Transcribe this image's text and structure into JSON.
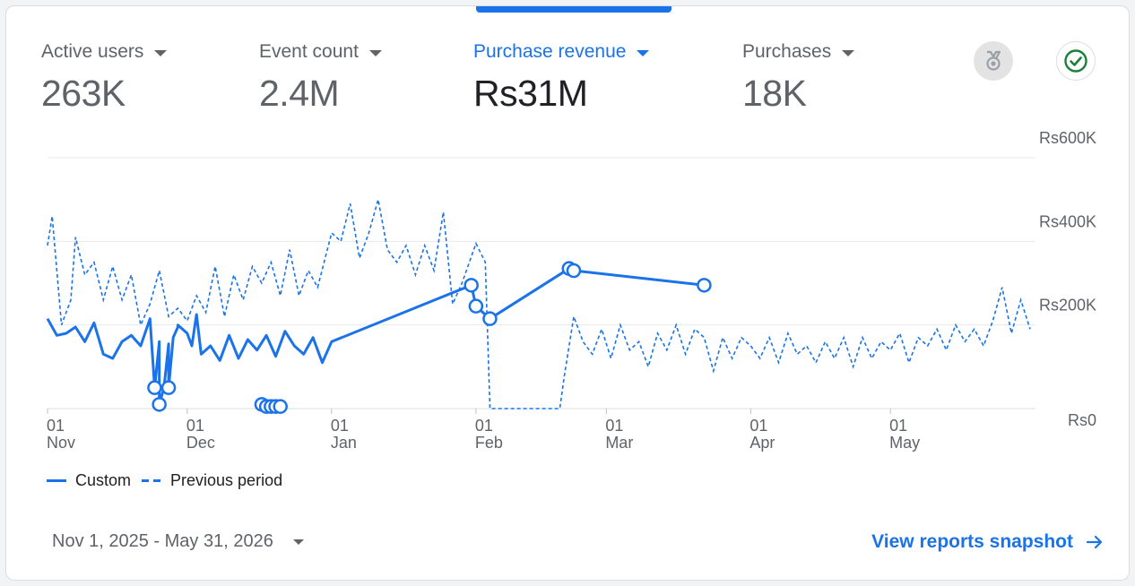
{
  "metrics": [
    {
      "label": "Active users",
      "value": "263K"
    },
    {
      "label": "Event count",
      "value": "2.4M"
    },
    {
      "label": "Purchase revenue",
      "value": "Rs31M"
    },
    {
      "label": "Purchases",
      "value": "18K"
    }
  ],
  "selected_metric": "Purchase revenue",
  "icons": {
    "insights": "medal-icon",
    "status": "check-circle-icon"
  },
  "colors": {
    "accent": "#1a73e8",
    "status_green": "#188038",
    "muted_text": "#5f6368"
  },
  "chart_data": {
    "type": "line",
    "title": "",
    "xlabel": "",
    "ylabel": "",
    "ylim": [
      0,
      600000
    ],
    "y_ticks": [
      "Rs0",
      "Rs200K",
      "Rs400K",
      "Rs600K"
    ],
    "y_tick_values": [
      0,
      200000,
      400000,
      600000
    ],
    "x_range": [
      "2025-11-01",
      "2026-05-31"
    ],
    "x_ticks": [
      {
        "day": "01",
        "month": "Nov",
        "date": "2025-11-01"
      },
      {
        "day": "01",
        "month": "Dec",
        "date": "2025-12-01"
      },
      {
        "day": "01",
        "month": "Jan",
        "date": "2026-01-01"
      },
      {
        "day": "01",
        "month": "Feb",
        "date": "2026-02-01"
      },
      {
        "day": "01",
        "month": "Mar",
        "date": "2026-03-01"
      },
      {
        "day": "01",
        "month": "Apr",
        "date": "2026-04-01"
      },
      {
        "day": "01",
        "month": "May",
        "date": "2026-05-01"
      }
    ],
    "grid": true,
    "legend_position": "bottom-left",
    "series": [
      {
        "name": "Custom",
        "style": "solid",
        "color": "#1a73e8",
        "points": [
          [
            "2025-11-01",
            215000
          ],
          [
            "2025-11-03",
            175000
          ],
          [
            "2025-11-05",
            180000
          ],
          [
            "2025-11-07",
            195000
          ],
          [
            "2025-11-09",
            160000
          ],
          [
            "2025-11-11",
            205000
          ],
          [
            "2025-11-13",
            130000
          ],
          [
            "2025-11-15",
            120000
          ],
          [
            "2025-11-17",
            160000
          ],
          [
            "2025-11-19",
            175000
          ],
          [
            "2025-11-21",
            150000
          ],
          [
            "2025-11-23",
            215000
          ],
          [
            "2025-11-25",
            160000
          ],
          [
            "2025-11-27",
            155000
          ],
          [
            "2025-11-29",
            195000
          ],
          [
            "2025-12-01",
            180000
          ],
          [
            "2025-12-03",
            225000
          ],
          [
            "2025-11-29",
            200000
          ],
          [
            "2025-11-24",
            50000
          ],
          [
            "2025-11-24",
            50000
          ],
          [
            "2025-11-25",
            10000
          ],
          [
            "2025-11-26",
            50000
          ],
          [
            "2025-11-27",
            50000
          ],
          [
            "2025-11-28",
            170000
          ],
          [
            "2025-12-02",
            150000
          ],
          [
            "2025-12-04",
            130000
          ],
          [
            "2025-12-06",
            150000
          ],
          [
            "2025-12-08",
            115000
          ],
          [
            "2025-12-10",
            175000
          ],
          [
            "2025-12-12",
            120000
          ],
          [
            "2025-12-14",
            165000
          ],
          [
            "2025-12-16",
            140000
          ],
          [
            "2025-12-18",
            175000
          ],
          [
            "2025-12-20",
            125000
          ],
          [
            "2025-12-22",
            185000
          ],
          [
            "2025-12-24",
            150000
          ],
          [
            "2025-12-26",
            130000
          ],
          [
            "2025-12-28",
            170000
          ],
          [
            "2025-12-30",
            110000
          ],
          [
            "2026-01-01",
            160000
          ]
        ],
        "highlighted_points": [
          [
            "2025-11-24",
            50000
          ],
          [
            "2025-11-25",
            10000
          ],
          [
            "2025-11-27",
            50000
          ],
          [
            "2025-12-17",
            10000
          ],
          [
            "2025-12-18",
            5000
          ],
          [
            "2025-12-19",
            5000
          ],
          [
            "2025-12-20",
            5000
          ],
          [
            "2025-12-21",
            5000
          ],
          [
            "2026-01-31",
            295000
          ],
          [
            "2026-02-01",
            245000
          ],
          [
            "2026-02-04",
            215000
          ],
          [
            "2026-02-21",
            335000
          ],
          [
            "2026-02-22",
            330000
          ],
          [
            "2026-03-22",
            295000
          ]
        ]
      },
      {
        "name": "Previous period",
        "style": "dashed",
        "color": "#1a73e8",
        "points": [
          [
            "2025-11-01",
            390000
          ],
          [
            "2025-11-02",
            460000
          ],
          [
            "2025-11-04",
            200000
          ],
          [
            "2025-11-06",
            260000
          ],
          [
            "2025-11-07",
            410000
          ],
          [
            "2025-11-09",
            320000
          ],
          [
            "2025-11-11",
            350000
          ],
          [
            "2025-11-13",
            260000
          ],
          [
            "2025-11-15",
            340000
          ],
          [
            "2025-11-17",
            260000
          ],
          [
            "2025-11-19",
            320000
          ],
          [
            "2025-11-21",
            200000
          ],
          [
            "2025-11-23",
            250000
          ],
          [
            "2025-11-25",
            330000
          ],
          [
            "2025-11-27",
            220000
          ],
          [
            "2025-11-29",
            240000
          ],
          [
            "2025-12-01",
            210000
          ],
          [
            "2025-12-03",
            270000
          ],
          [
            "2025-12-05",
            230000
          ],
          [
            "2025-12-07",
            340000
          ],
          [
            "2025-12-09",
            220000
          ],
          [
            "2025-12-11",
            320000
          ],
          [
            "2025-12-13",
            260000
          ],
          [
            "2025-12-15",
            340000
          ],
          [
            "2025-12-17",
            300000
          ],
          [
            "2025-12-19",
            350000
          ],
          [
            "2025-12-21",
            270000
          ],
          [
            "2025-12-23",
            380000
          ],
          [
            "2025-12-25",
            270000
          ],
          [
            "2025-12-27",
            330000
          ],
          [
            "2025-12-29",
            290000
          ],
          [
            "2026-01-01",
            420000
          ],
          [
            "2026-01-03",
            400000
          ],
          [
            "2026-01-05",
            490000
          ],
          [
            "2026-01-07",
            360000
          ],
          [
            "2026-01-09",
            420000
          ],
          [
            "2026-01-11",
            500000
          ],
          [
            "2026-01-13",
            380000
          ],
          [
            "2026-01-15",
            350000
          ],
          [
            "2026-01-17",
            390000
          ],
          [
            "2026-01-19",
            320000
          ],
          [
            "2026-01-21",
            390000
          ],
          [
            "2026-01-23",
            330000
          ],
          [
            "2026-01-25",
            470000
          ],
          [
            "2026-01-27",
            250000
          ],
          [
            "2026-01-29",
            300000
          ],
          [
            "2026-02-01",
            395000
          ],
          [
            "2026-02-03",
            350000
          ],
          [
            "2026-02-04",
            0
          ],
          [
            "2026-02-07",
            0
          ],
          [
            "2026-02-11",
            0
          ],
          [
            "2026-02-15",
            0
          ],
          [
            "2026-02-19",
            0
          ],
          [
            "2026-02-20",
            80000
          ],
          [
            "2026-02-22",
            220000
          ],
          [
            "2026-02-24",
            160000
          ],
          [
            "2026-02-26",
            130000
          ],
          [
            "2026-02-28",
            190000
          ],
          [
            "2026-03-02",
            120000
          ],
          [
            "2026-03-04",
            200000
          ],
          [
            "2026-03-06",
            140000
          ],
          [
            "2026-03-08",
            160000
          ],
          [
            "2026-03-10",
            100000
          ],
          [
            "2026-03-12",
            180000
          ],
          [
            "2026-03-14",
            140000
          ],
          [
            "2026-03-16",
            200000
          ],
          [
            "2026-03-18",
            130000
          ],
          [
            "2026-03-20",
            190000
          ],
          [
            "2026-03-22",
            170000
          ],
          [
            "2026-03-24",
            90000
          ],
          [
            "2026-03-26",
            170000
          ],
          [
            "2026-03-28",
            120000
          ],
          [
            "2026-03-30",
            170000
          ],
          [
            "2026-04-01",
            150000
          ],
          [
            "2026-04-03",
            120000
          ],
          [
            "2026-04-05",
            170000
          ],
          [
            "2026-04-07",
            110000
          ],
          [
            "2026-04-09",
            180000
          ],
          [
            "2026-04-11",
            130000
          ],
          [
            "2026-04-13",
            150000
          ],
          [
            "2026-04-15",
            110000
          ],
          [
            "2026-04-17",
            160000
          ],
          [
            "2026-04-19",
            120000
          ],
          [
            "2026-04-21",
            170000
          ],
          [
            "2026-04-23",
            100000
          ],
          [
            "2026-04-25",
            170000
          ],
          [
            "2026-04-27",
            120000
          ],
          [
            "2026-04-29",
            160000
          ],
          [
            "2026-05-01",
            140000
          ],
          [
            "2026-05-03",
            180000
          ],
          [
            "2026-05-05",
            110000
          ],
          [
            "2026-05-07",
            170000
          ],
          [
            "2026-05-09",
            150000
          ],
          [
            "2026-05-11",
            190000
          ],
          [
            "2026-05-13",
            140000
          ],
          [
            "2026-05-15",
            200000
          ],
          [
            "2026-05-17",
            160000
          ],
          [
            "2026-05-19",
            190000
          ],
          [
            "2026-05-21",
            150000
          ],
          [
            "2026-05-23",
            210000
          ],
          [
            "2026-05-25",
            290000
          ],
          [
            "2026-05-27",
            180000
          ],
          [
            "2026-05-29",
            260000
          ],
          [
            "2026-05-31",
            190000
          ]
        ]
      }
    ]
  },
  "legend": {
    "custom_label": "Custom",
    "previous_label": "Previous period"
  },
  "footer": {
    "date_range": "Nov 1, 2025 - May 31, 2026",
    "link_text": "View reports snapshot"
  }
}
